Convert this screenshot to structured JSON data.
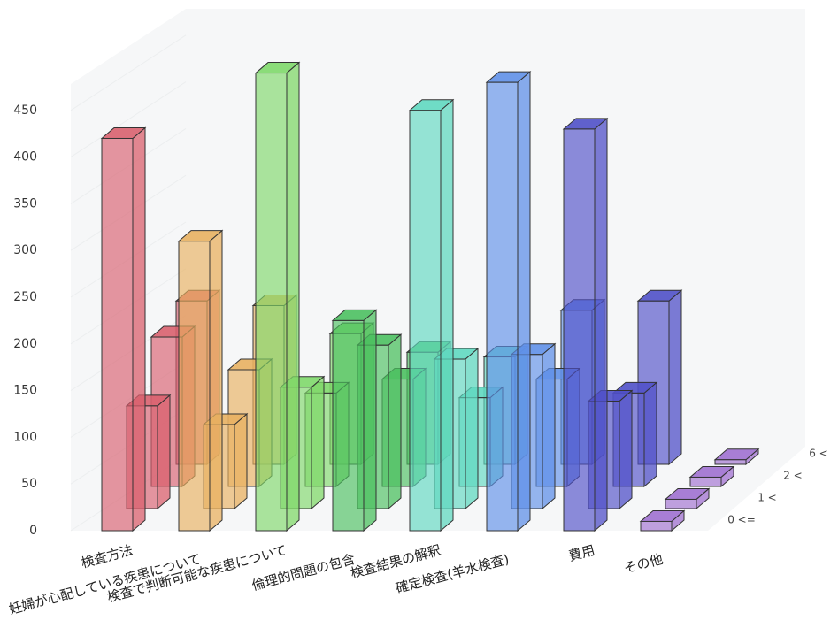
{
  "chart_data": {
    "type": "bar3d",
    "categories": [
      "検査方法",
      "妊婦が心配している疾患について",
      "検査で判断可能な疾患について",
      "倫理的問題の包含",
      "検査結果の解釈",
      "確定検査(羊水検査)",
      "費用",
      "その他"
    ],
    "colors": [
      "#d9606e",
      "#e8b060",
      "#80d86a",
      "#4cc060",
      "#60d8c0",
      "#6090e8",
      "#5050c8",
      "#a070d0"
    ],
    "series": [
      {
        "name": "0 <=",
        "values": [
          420,
          310,
          490,
          225,
          450,
          480,
          430,
          10
        ]
      },
      {
        "name": "1 <",
        "values": [
          110,
          90,
          130,
          175,
          160,
          165,
          115,
          10
        ]
      },
      {
        "name": "2 <",
        "values": [
          160,
          125,
          100,
          115,
          95,
          115,
          100,
          10
        ]
      },
      {
        "name": "6 <",
        "values": [
          175,
          170,
          140,
          120,
          115,
          165,
          175,
          5
        ]
      }
    ],
    "ylim": [
      0,
      500
    ],
    "yticks": [
      0,
      50,
      100,
      150,
      200,
      250,
      300,
      350,
      400,
      450
    ]
  }
}
